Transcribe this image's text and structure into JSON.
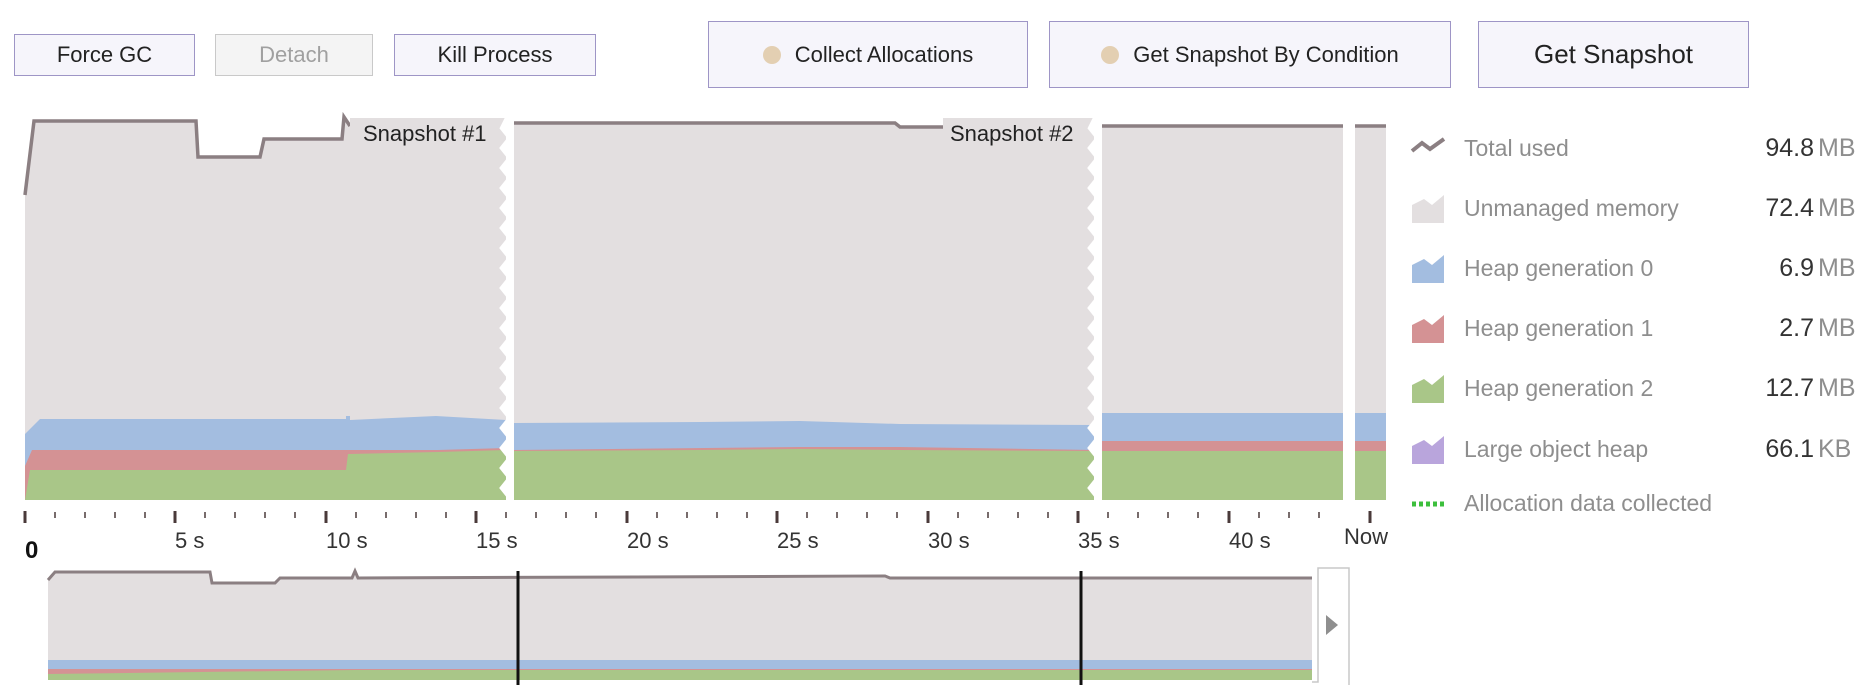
{
  "toolbar": {
    "force_gc": "Force GC",
    "detach": "Detach",
    "kill_process": "Kill Process",
    "collect_allocations": "Collect Allocations",
    "snapshot_by_condition": "Get Snapshot By Condition",
    "get_snapshot": "Get Snapshot"
  },
  "snapshots": [
    {
      "label": "Snapshot #1",
      "time_s": 16
    },
    {
      "label": "Snapshot #2",
      "time_s": 35
    }
  ],
  "time_axis": {
    "origin_label": "0",
    "ticks": [
      "5 s",
      "10 s",
      "15 s",
      "20 s",
      "25 s",
      "30 s",
      "35 s",
      "40 s"
    ],
    "now_label": "Now"
  },
  "legend": [
    {
      "label": "Total used",
      "value": "94.8",
      "unit": "MB",
      "icon": "line-icon",
      "color": "#8b7f82"
    },
    {
      "label": "Unmanaged memory",
      "value": "72.4",
      "unit": "MB",
      "icon": "area-icon",
      "color": "#e3dfe0"
    },
    {
      "label": "Heap generation 0",
      "value": "6.9",
      "unit": "MB",
      "icon": "area-icon",
      "color": "#a3bde0"
    },
    {
      "label": "Heap generation 1",
      "value": "2.7",
      "unit": "MB",
      "icon": "area-icon",
      "color": "#d49294"
    },
    {
      "label": "Heap generation 2",
      "value": "12.7",
      "unit": "MB",
      "icon": "area-icon",
      "color": "#a9c688"
    },
    {
      "label": "Large object heap",
      "value": "66.1",
      "unit": "KB",
      "icon": "area-icon",
      "color": "#b9a5dc"
    },
    {
      "label": "Allocation data collected",
      "value": "",
      "unit": "",
      "icon": "dashed-line-icon",
      "color": "#3cbf3c"
    }
  ]
}
